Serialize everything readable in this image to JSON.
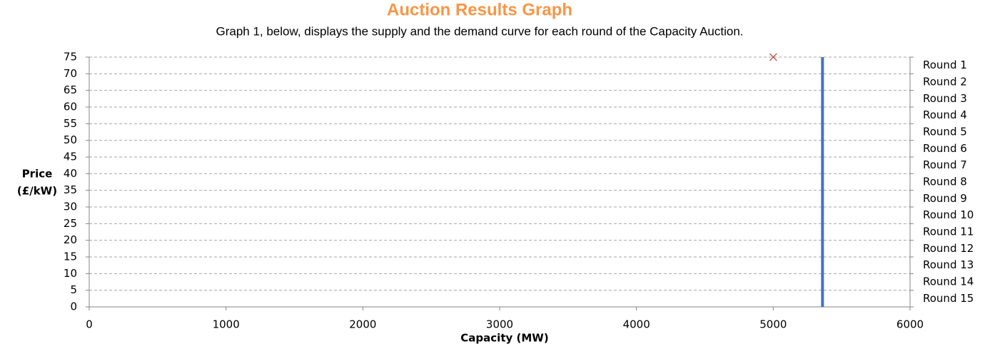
{
  "chart_data": {
    "type": "line",
    "title": "Auction Results Graph",
    "subtitle": "Graph 1, below, displays the supply and the demand curve for each round of the Capacity Auction.",
    "xlabel": "Capacity (MW)",
    "ylabel": [
      "Price",
      "(£/kW)"
    ],
    "xlim": [
      0,
      6000
    ],
    "xticks": [
      0,
      1000,
      2000,
      3000,
      4000,
      5000,
      6000
    ],
    "ylim": [
      0,
      75
    ],
    "yticks": [
      0,
      5,
      10,
      15,
      20,
      25,
      30,
      35,
      40,
      45,
      50,
      55,
      60,
      65,
      70,
      75
    ],
    "y2categories": [
      "Round 1",
      "Round 2",
      "Round 3",
      "Round 4",
      "Round 5",
      "Round 6",
      "Round 7",
      "Round 8",
      "Round 9",
      "Round 10",
      "Round 11",
      "Round 12",
      "Round 13",
      "Round 14",
      "Round 15"
    ],
    "grid": true,
    "series": [
      {
        "kind": "line",
        "color": "#4472c4",
        "x": [
          5360,
          5360
        ],
        "values": [
          0,
          75
        ]
      },
      {
        "kind": "scatter",
        "marker": "x",
        "color": "#c0504d",
        "x": [
          5000
        ],
        "values": [
          75
        ]
      }
    ]
  }
}
